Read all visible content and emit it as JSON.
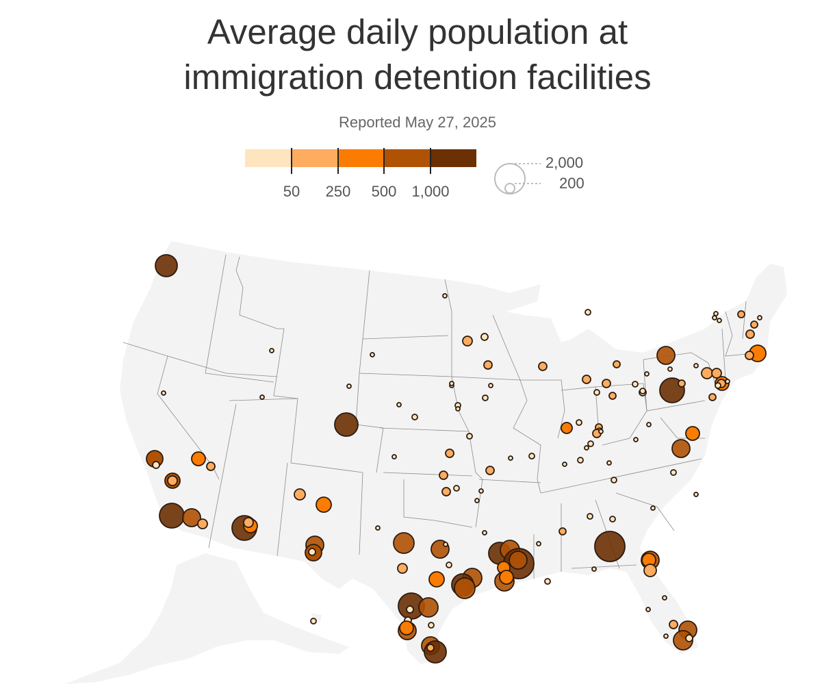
{
  "title": {
    "line1": "Average daily population at",
    "line2": "immigration detention facilities"
  },
  "subtitle": "Reported May 27, 2025",
  "color_legend": {
    "bins": [
      {
        "color": "#fee5bf"
      },
      {
        "color": "#fdac60"
      },
      {
        "color": "#fb7c02"
      },
      {
        "color": "#b05204"
      },
      {
        "color": "#6b3004"
      }
    ],
    "thresholds": [
      "50",
      "250",
      "500",
      "1,000"
    ]
  },
  "size_legend": {
    "large_label": "2,000",
    "small_label": "200"
  },
  "colors": {
    "land": "#f3f3f3",
    "border": "#8a8a8a",
    "marker_stroke": "#2b1a0e"
  },
  "chart_data": {
    "type": "bubble-map",
    "value_encoding": "circle area ~ average daily population; color by population bin (<50, 50-250, 250-500, 500-1,000, >1,000)",
    "approx_location_note": "facility locations read from the map; no facility names are printed"
  }
}
